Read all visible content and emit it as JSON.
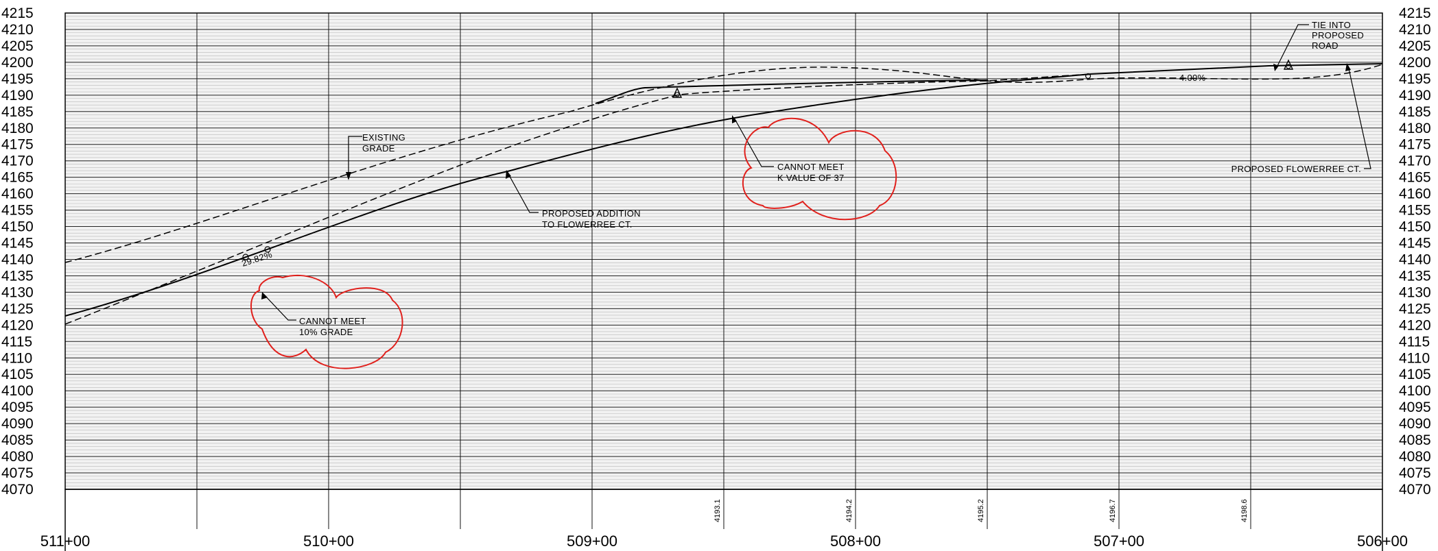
{
  "elevations": [
    "4215",
    "4210",
    "4205",
    "4200",
    "4195",
    "4190",
    "4185",
    "4180",
    "4175",
    "4170",
    "4165",
    "4160",
    "4155",
    "4150",
    "4145",
    "4140",
    "4135",
    "4130",
    "4125",
    "4120",
    "4115",
    "4110",
    "4105",
    "4100",
    "4095",
    "4090",
    "4085",
    "4080",
    "4075",
    "4070"
  ],
  "stations": [
    "511+00",
    "510+00",
    "509+00",
    "508+00",
    "507+00",
    "506+00"
  ],
  "grade_elevations": [
    "4193.1",
    "4194.2",
    "4195.2",
    "4196.7",
    "4198.6"
  ],
  "annotations": {
    "existing_grade": [
      "EXISTING",
      "GRADE"
    ],
    "proposed_addition": [
      "PROPOSED ADDITION",
      "TO FLOWERREE CT."
    ],
    "cannot_meet_k": [
      "CANNOT MEET",
      "K VALUE OF 37"
    ],
    "cannot_meet_grade": [
      "CANNOT MEET",
      "10% GRADE"
    ],
    "tie_into": [
      "TIE INTO",
      "PROPOSED",
      "ROAD"
    ],
    "proposed_flowerree": "PROPOSED FLOWERREE CT.",
    "slope_steep": "29.82%",
    "slope_flat": "4.00%"
  },
  "colors": {
    "revision_cloud": "#e0201c",
    "grid_background": "#f2f2f2"
  }
}
